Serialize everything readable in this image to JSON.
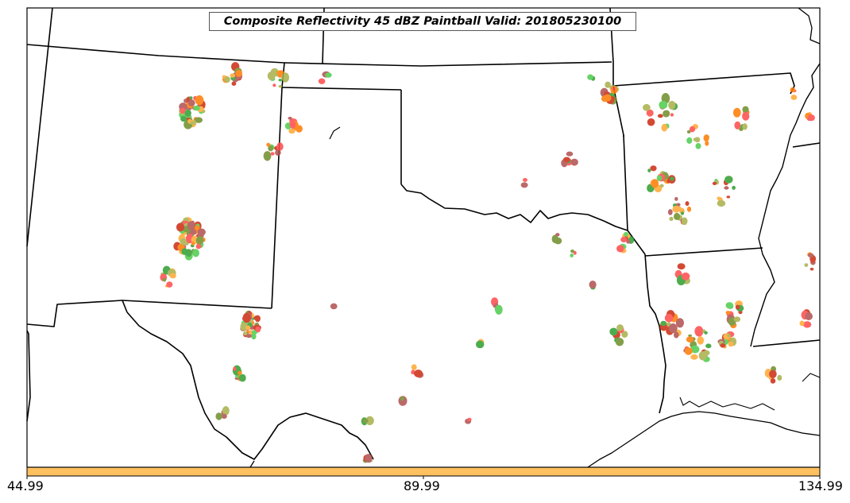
{
  "title": "Composite Reflectivity 45 dBZ Paintball Valid: 201805230100",
  "colorbar": {
    "fill_color": "#ffc060",
    "ticks": [
      "44.99",
      "89.99",
      "134.99"
    ]
  },
  "palette": [
    "#ff4a4a",
    "#b05050",
    "#ffa830",
    "#ff7a00",
    "#4ccc4c",
    "#2e9e2e",
    "#a8b04a",
    "#6e8e2a",
    "#cc2a10"
  ],
  "map_features": [
    "state-borders",
    "coastline",
    "rivers"
  ]
}
